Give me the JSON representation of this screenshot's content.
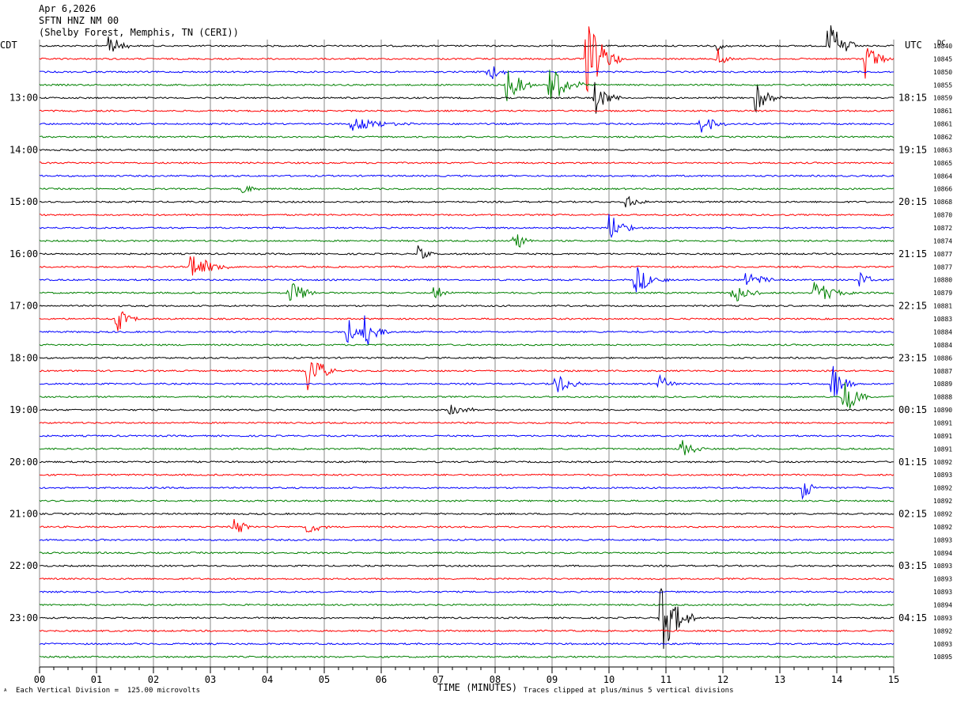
{
  "header": {
    "date": "Apr 6,2026",
    "station": "SFTN HNZ NM 00",
    "location": "(Shelby Forest, Memphis, TN (CERI))",
    "left_tz": "CDT",
    "right_tz": "UTC",
    "dc_header": "DC"
  },
  "footer": {
    "scale_note": "Each Vertical Division =  125.00 microvolts",
    "xlabel": "TIME (MINUTES)",
    "clip_note": "Traces clipped at plus/minus 5 vertical divisions",
    "corner_mark": "ᴬ"
  },
  "chart_data": {
    "type": "line",
    "title": "",
    "xlabel": "TIME (MINUTES)",
    "ylabel": "",
    "xlim": [
      0,
      15
    ],
    "x_ticks": [
      "00",
      "01",
      "02",
      "03",
      "04",
      "05",
      "06",
      "07",
      "08",
      "09",
      "10",
      "11",
      "12",
      "13",
      "14",
      "15"
    ],
    "grid": true,
    "trace_colors": [
      "#000000",
      "#ff0000",
      "#0000ff",
      "#008000"
    ],
    "line_count": 48,
    "left_time_labels": [
      {
        "line": 4,
        "label": "13:00"
      },
      {
        "line": 8,
        "label": "14:00"
      },
      {
        "line": 12,
        "label": "15:00"
      },
      {
        "line": 16,
        "label": "16:00"
      },
      {
        "line": 20,
        "label": "17:00"
      },
      {
        "line": 24,
        "label": "18:00"
      },
      {
        "line": 28,
        "label": "19:00"
      },
      {
        "line": 32,
        "label": "20:00"
      },
      {
        "line": 36,
        "label": "21:00"
      },
      {
        "line": 40,
        "label": "22:00"
      },
      {
        "line": 44,
        "label": "23:00"
      }
    ],
    "right_time_labels": [
      {
        "line": 4,
        "label": "18:15"
      },
      {
        "line": 8,
        "label": "19:15"
      },
      {
        "line": 12,
        "label": "20:15"
      },
      {
        "line": 16,
        "label": "21:15"
      },
      {
        "line": 20,
        "label": "22:15"
      },
      {
        "line": 24,
        "label": "23:15"
      },
      {
        "line": 28,
        "label": "00:15"
      },
      {
        "line": 32,
        "label": "01:15"
      },
      {
        "line": 36,
        "label": "02:15"
      },
      {
        "line": 40,
        "label": "03:15"
      },
      {
        "line": 44,
        "label": "04:15"
      }
    ],
    "dc_values": [
      "10840",
      "10845",
      "10850",
      "10855",
      "10859",
      "10861",
      "10861",
      "10862",
      "10863",
      "10865",
      "10864",
      "10866",
      "10868",
      "10870",
      "10872",
      "10874",
      "10877",
      "10877",
      "10880",
      "10879",
      "10881",
      "10883",
      "10884",
      "10884",
      "10886",
      "10887",
      "10889",
      "10888",
      "10890",
      "10891",
      "10891",
      "10891",
      "10892",
      "10893",
      "10892",
      "10892",
      "10892",
      "10892",
      "10893",
      "10894",
      "10893",
      "10893",
      "10893",
      "10894",
      "10893",
      "10892",
      "10893",
      "10895"
    ],
    "events": [
      {
        "line": 0,
        "minute": 1.2,
        "amp": 1.4,
        "dur": 0.15
      },
      {
        "line": 0,
        "minute": 11.9,
        "amp": 0.4,
        "dur": 0.12
      },
      {
        "line": 0,
        "minute": 13.85,
        "amp": 2.5,
        "dur": 0.2
      },
      {
        "line": 1,
        "minute": 9.6,
        "amp": 3.5,
        "dur": 0.25
      },
      {
        "line": 1,
        "minute": 11.9,
        "amp": 1.0,
        "dur": 0.12
      },
      {
        "line": 1,
        "minute": 14.5,
        "amp": 1.6,
        "dur": 0.18
      },
      {
        "line": 2,
        "minute": 7.85,
        "amp": 1.0,
        "dur": 0.18
      },
      {
        "line": 3,
        "minute": 8.2,
        "amp": 1.4,
        "dur": 0.22
      },
      {
        "line": 3,
        "minute": 8.95,
        "amp": 1.8,
        "dur": 0.25
      },
      {
        "line": 4,
        "minute": 9.75,
        "amp": 1.3,
        "dur": 0.2
      },
      {
        "line": 4,
        "minute": 12.55,
        "amp": 1.4,
        "dur": 0.2
      },
      {
        "line": 6,
        "minute": 5.45,
        "amp": 0.6,
        "dur": 0.5
      },
      {
        "line": 6,
        "minute": 11.6,
        "amp": 1.0,
        "dur": 0.2
      },
      {
        "line": 11,
        "minute": 3.55,
        "amp": 0.5,
        "dur": 0.15
      },
      {
        "line": 12,
        "minute": 10.3,
        "amp": 0.7,
        "dur": 0.15
      },
      {
        "line": 14,
        "minute": 10.0,
        "amp": 1.2,
        "dur": 0.2
      },
      {
        "line": 15,
        "minute": 8.3,
        "amp": 1.2,
        "dur": 0.15
      },
      {
        "line": 16,
        "minute": 6.65,
        "amp": 0.7,
        "dur": 0.12
      },
      {
        "line": 17,
        "minute": 2.65,
        "amp": 1.2,
        "dur": 0.3
      },
      {
        "line": 18,
        "minute": 10.45,
        "amp": 1.2,
        "dur": 0.25
      },
      {
        "line": 18,
        "minute": 12.4,
        "amp": 0.9,
        "dur": 0.2
      },
      {
        "line": 18,
        "minute": 14.4,
        "amp": 0.9,
        "dur": 0.12
      },
      {
        "line": 19,
        "minute": 4.35,
        "amp": 1.6,
        "dur": 0.2
      },
      {
        "line": 19,
        "minute": 6.9,
        "amp": 0.8,
        "dur": 0.15
      },
      {
        "line": 19,
        "minute": 12.15,
        "amp": 1.2,
        "dur": 0.2
      },
      {
        "line": 19,
        "minute": 13.6,
        "amp": 1.0,
        "dur": 0.3
      },
      {
        "line": 21,
        "minute": 1.35,
        "amp": 1.2,
        "dur": 0.15
      },
      {
        "line": 22,
        "minute": 5.4,
        "amp": 1.1,
        "dur": 0.2
      },
      {
        "line": 22,
        "minute": 5.7,
        "amp": 1.3,
        "dur": 0.2
      },
      {
        "line": 25,
        "minute": 4.7,
        "amp": 2.0,
        "dur": 0.2
      },
      {
        "line": 26,
        "minute": 9.05,
        "amp": 1.1,
        "dur": 0.2
      },
      {
        "line": 26,
        "minute": 10.85,
        "amp": 1.0,
        "dur": 0.15
      },
      {
        "line": 26,
        "minute": 13.9,
        "amp": 1.8,
        "dur": 0.2
      },
      {
        "line": 27,
        "minute": 14.1,
        "amp": 2.2,
        "dur": 0.18
      },
      {
        "line": 28,
        "minute": 7.2,
        "amp": 0.5,
        "dur": 0.25
      },
      {
        "line": 31,
        "minute": 11.25,
        "amp": 0.8,
        "dur": 0.2
      },
      {
        "line": 34,
        "minute": 13.4,
        "amp": 1.1,
        "dur": 0.15
      },
      {
        "line": 37,
        "minute": 3.4,
        "amp": 1.0,
        "dur": 0.15
      },
      {
        "line": 37,
        "minute": 4.7,
        "amp": 0.8,
        "dur": 0.15
      },
      {
        "line": 44,
        "minute": 10.9,
        "amp": 3.2,
        "dur": 0.25
      }
    ]
  }
}
